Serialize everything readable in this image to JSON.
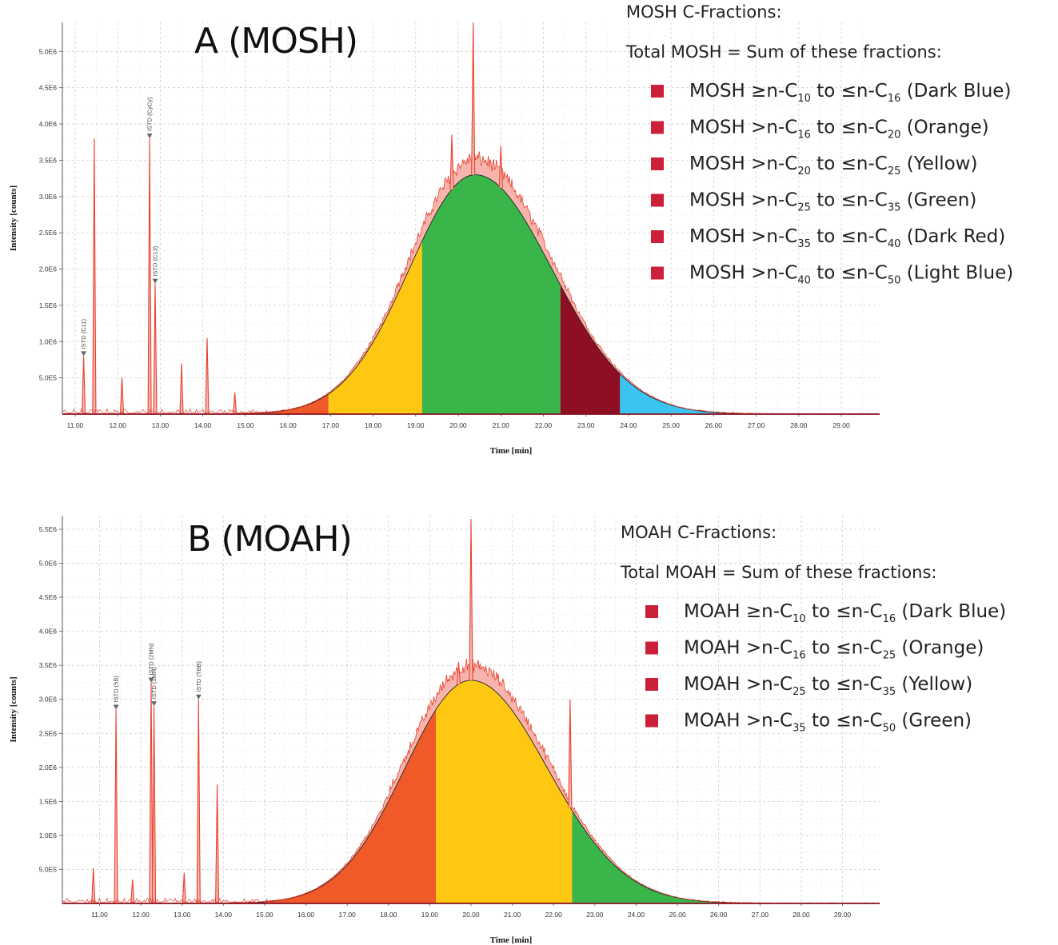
{
  "colors": {
    "dark_blue": "#1f3a93",
    "orange": "#f05a28",
    "yellow": "#fdc712",
    "green": "#3ab54a",
    "dark_red": "#8e0e24",
    "light_blue": "#3cc4f0",
    "trace": "#e8422f",
    "hump_fill": "#f6b4ad",
    "marker": "#cc1f3a"
  },
  "chart_data": [
    {
      "id": "A",
      "type": "area",
      "title": "A (MOSH)",
      "xlabel": "Time [min]",
      "ylabel": "Intensity [counts]",
      "xlim": [
        10.7,
        29.9
      ],
      "ylim": [
        0,
        5.4
      ],
      "x_ticks": [
        "11.00",
        "12.00",
        "13.00",
        "14.00",
        "15.00",
        "16.00",
        "17.00",
        "18.00",
        "19.00",
        "20.00",
        "21.00",
        "22.00",
        "23.00",
        "24.00",
        "25.00",
        "26.00",
        "27.00",
        "28.00",
        "29.00"
      ],
      "y_ticks": [
        "5.0E5",
        "1.0E6",
        "1.5E6",
        "2.0E6",
        "2.5E6",
        "3.0E6",
        "3.5E6",
        "4.0E6",
        "4.5E6",
        "5.0E6"
      ],
      "legend_heading": "MOSH C-Fractions:",
      "legend_subheading": "Total MOSH = Sum of these fractions:",
      "legend": [
        {
          "name": "MOSH ≥n-C10 to ≤n-C16 (Dark Blue)",
          "prefix": "MOSH ≥n-C",
          "a": "10",
          "mid": " to ≤n-C",
          "b": "16",
          "suffix": " (Dark Blue)"
        },
        {
          "name": "MOSH >n-C16 to ≤n-C20 (Orange)",
          "prefix": "MOSH >n-C",
          "a": "16",
          "mid": " to ≤n-C",
          "b": "20",
          "suffix": " (Orange)"
        },
        {
          "name": "MOSH >n-C20 to ≤n-C25 (Yellow)",
          "prefix": "MOSH >n-C",
          "a": "20",
          "mid": " to ≤n-C",
          "b": "25",
          "suffix": " (Yellow)"
        },
        {
          "name": "MOSH >n-C25 to ≤n-C35 (Green)",
          "prefix": "MOSH >n-C",
          "a": "25",
          "mid": " to ≤n-C",
          "b": "35",
          "suffix": " (Green)"
        },
        {
          "name": "MOSH >n-C35 to ≤n-C40 (Dark Red)",
          "prefix": "MOSH >n-C",
          "a": "35",
          "mid": " to ≤n-C",
          "b": "40",
          "suffix": " (Dark Red)"
        },
        {
          "name": "MOSH >n-C40 to ≤n-C50 (Light Blue)",
          "prefix": "MOSH >n-C",
          "a": "40",
          "mid": " to ≤n-C",
          "b": "50",
          "suffix": " (Light Blue)"
        }
      ],
      "hump": {
        "center": 20.4,
        "peak": 3.3,
        "sigma_left": 1.55,
        "sigma_right": 1.8
      },
      "fractions": [
        {
          "from": 10.7,
          "to": 15.2,
          "color": "dark_blue"
        },
        {
          "from": 15.2,
          "to": 16.95,
          "color": "orange"
        },
        {
          "from": 16.95,
          "to": 19.15,
          "color": "yellow"
        },
        {
          "from": 19.15,
          "to": 22.4,
          "color": "green"
        },
        {
          "from": 22.4,
          "to": 23.8,
          "color": "dark_red"
        },
        {
          "from": 23.8,
          "to": 29.9,
          "color": "light_blue"
        }
      ],
      "peaks": [
        {
          "x": 11.2,
          "y": 0.8
        },
        {
          "x": 11.45,
          "y": 3.8
        },
        {
          "x": 12.1,
          "y": 0.5
        },
        {
          "x": 12.75,
          "y": 3.8
        },
        {
          "x": 12.88,
          "y": 1.8
        },
        {
          "x": 13.5,
          "y": 0.7
        },
        {
          "x": 14.1,
          "y": 1.05
        },
        {
          "x": 14.75,
          "y": 0.3
        },
        {
          "x": 20.35,
          "y": 5.4
        },
        {
          "x": 19.85,
          "y": 3.85
        },
        {
          "x": 21.0,
          "y": 3.7
        }
      ],
      "istd": [
        {
          "label": "ISTD (C11)",
          "x": 11.2,
          "y": 0.8
        },
        {
          "label": "ISTD (CyCy)",
          "x": 12.75,
          "y": 3.8
        },
        {
          "label": "ISTD (C13)",
          "x": 12.88,
          "y": 1.8
        }
      ]
    },
    {
      "id": "B",
      "type": "area",
      "title": "B (MOAH)",
      "xlabel": "Time [min]",
      "ylabel": "Intensity [counts]",
      "xlim": [
        10.1,
        29.9
      ],
      "ylim": [
        0,
        5.7
      ],
      "x_ticks": [
        "11.00",
        "12.00",
        "13.00",
        "14.00",
        "15.00",
        "16.00",
        "17.00",
        "18.00",
        "19.00",
        "20.00",
        "21.00",
        "22.00",
        "23.00",
        "24.00",
        "25.00",
        "26.00",
        "27.00",
        "28.00",
        "29.00"
      ],
      "y_ticks": [
        "5.0E5",
        "1.0E6",
        "1.5E6",
        "2.0E6",
        "2.5E6",
        "3.0E6",
        "3.5E6",
        "4.0E6",
        "4.5E6",
        "5.0E6",
        "5.5E6"
      ],
      "legend_heading": "MOAH C-Fractions:",
      "legend_subheading": "Total MOAH = Sum of these fractions:",
      "legend": [
        {
          "name": "MOAH ≥n-C10 to ≤n-C16 (Dark Blue)",
          "prefix": "MOAH ≥n-C",
          "a": "10",
          "mid": " to ≤n-C",
          "b": "16",
          "suffix": " (Dark Blue)"
        },
        {
          "name": "MOAH >n-C16 to ≤n-C25 (Orange)",
          "prefix": "MOAH >n-C",
          "a": "16",
          "mid": " to ≤n-C",
          "b": "25",
          "suffix": " (Orange)"
        },
        {
          "name": "MOAH >n-C25 to ≤n-C35 (Yellow)",
          "prefix": "MOAH >n-C",
          "a": "25",
          "mid": " to ≤n-C",
          "b": "35",
          "suffix": " (Yellow)"
        },
        {
          "name": "MOAH >n-C35 to ≤n-C50 (Green)",
          "prefix": "MOAH >n-C",
          "a": "35",
          "mid": " to ≤n-C",
          "b": "50",
          "suffix": " (Green)"
        }
      ],
      "hump": {
        "center": 20.0,
        "peak": 3.28,
        "sigma_left": 1.6,
        "sigma_right": 1.85
      },
      "fractions": [
        {
          "from": 10.1,
          "to": 15.0,
          "color": "dark_blue"
        },
        {
          "from": 15.0,
          "to": 19.15,
          "color": "orange"
        },
        {
          "from": 19.15,
          "to": 22.45,
          "color": "yellow"
        },
        {
          "from": 22.45,
          "to": 29.9,
          "color": "green"
        }
      ],
      "peaks": [
        {
          "x": 10.85,
          "y": 0.52
        },
        {
          "x": 11.4,
          "y": 2.85
        },
        {
          "x": 11.8,
          "y": 0.35
        },
        {
          "x": 12.25,
          "y": 3.25
        },
        {
          "x": 12.32,
          "y": 2.9
        },
        {
          "x": 13.05,
          "y": 0.45
        },
        {
          "x": 13.4,
          "y": 3.0
        },
        {
          "x": 13.85,
          "y": 1.75
        },
        {
          "x": 20.0,
          "y": 5.65
        },
        {
          "x": 22.4,
          "y": 3.0
        },
        {
          "x": 19.7,
          "y": 3.55
        }
      ],
      "istd": [
        {
          "label": "ISTD (5B)",
          "x": 11.4,
          "y": 2.85
        },
        {
          "label": "ISTD (2MN)",
          "x": 12.25,
          "y": 3.25
        },
        {
          "label": "ISTD (1MN)",
          "x": 12.32,
          "y": 2.9
        },
        {
          "label": "ISTD (TBB)",
          "x": 13.4,
          "y": 3.0
        }
      ]
    }
  ]
}
